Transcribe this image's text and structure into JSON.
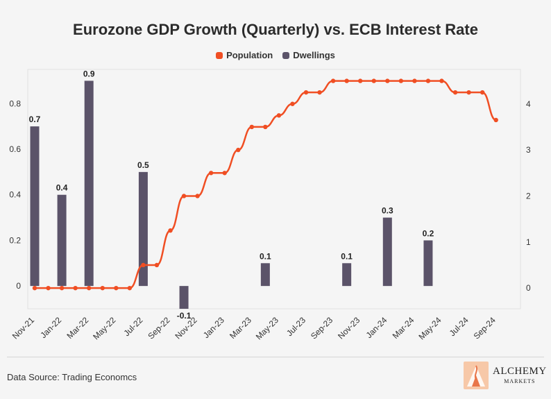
{
  "title": "Eurozone GDP Growth (Quarterly) vs. ECB Interest Rate",
  "source": "Data Source: Trading Economcs",
  "logo": {
    "main": "ALCHEMY",
    "sub": "MARKETS"
  },
  "chart_data": {
    "type": "bar",
    "legend": [
      {
        "name": "Population",
        "color": "#f04e23"
      },
      {
        "name": "Dwellings",
        "color": "#5b5369"
      }
    ],
    "x_ticks": [
      "Nov-21",
      "Jan-22",
      "Mar-22",
      "May-22",
      "Jul-22",
      "Sep-22",
      "Nov-22",
      "Jan-23",
      "Mar-23",
      "May-23",
      "Jul-23",
      "Sep-23",
      "Nov-23",
      "Jan-24",
      "Mar-24",
      "May-24",
      "Jul-24",
      "Sep-24"
    ],
    "y_left": {
      "ticks": [
        "0",
        "0.2",
        "0.4",
        "0.6",
        "0.8"
      ],
      "lim": [
        -0.1,
        0.95
      ]
    },
    "y_right": {
      "ticks": [
        "0",
        "1",
        "2",
        "3",
        "4"
      ],
      "lim": [
        -0.45,
        4.75
      ]
    },
    "bars": [
      {
        "x": "Nov-21",
        "value": 0.7,
        "label": "0.7"
      },
      {
        "x": "Jan-22",
        "value": 0.4,
        "label": "0.4"
      },
      {
        "x": "Mar-22",
        "value": 0.9,
        "label": "0.9"
      },
      {
        "x": "Jul-22",
        "value": 0.5,
        "label": "0.5"
      },
      {
        "x": "Oct-22",
        "value": -0.1,
        "label": "-0.1"
      },
      {
        "x": "Apr-23",
        "value": 0.1,
        "label": "0.1"
      },
      {
        "x": "Oct-23",
        "value": 0.1,
        "label": "0.1"
      },
      {
        "x": "Jan-24",
        "value": 0.3,
        "label": "0.3"
      },
      {
        "x": "Apr-24",
        "value": 0.2,
        "label": "0.2"
      }
    ],
    "line": {
      "x": [
        "Nov-21",
        "Dec-21",
        "Jan-22",
        "Feb-22",
        "Mar-22",
        "Apr-22",
        "May-22",
        "Jun-22",
        "Jul-22",
        "Aug-22",
        "Sep-22",
        "Oct-22",
        "Nov-22",
        "Dec-22",
        "Jan-23",
        "Feb-23",
        "Mar-23",
        "Apr-23",
        "May-23",
        "Jun-23",
        "Jul-23",
        "Aug-23",
        "Sep-23",
        "Oct-23",
        "Nov-23",
        "Dec-23",
        "Jan-24",
        "Feb-24",
        "Mar-24",
        "Apr-24",
        "May-24",
        "Jun-24",
        "Jul-24",
        "Aug-24",
        "Sep-24"
      ],
      "values": [
        0,
        0,
        0,
        0,
        0,
        0,
        0,
        0,
        0.5,
        0.5,
        1.25,
        2,
        2,
        2.5,
        2.5,
        3,
        3.5,
        3.5,
        3.75,
        4,
        4.25,
        4.25,
        4.5,
        4.5,
        4.5,
        4.5,
        4.5,
        4.5,
        4.5,
        4.5,
        4.5,
        4.25,
        4.25,
        4.25,
        3.65
      ]
    }
  }
}
